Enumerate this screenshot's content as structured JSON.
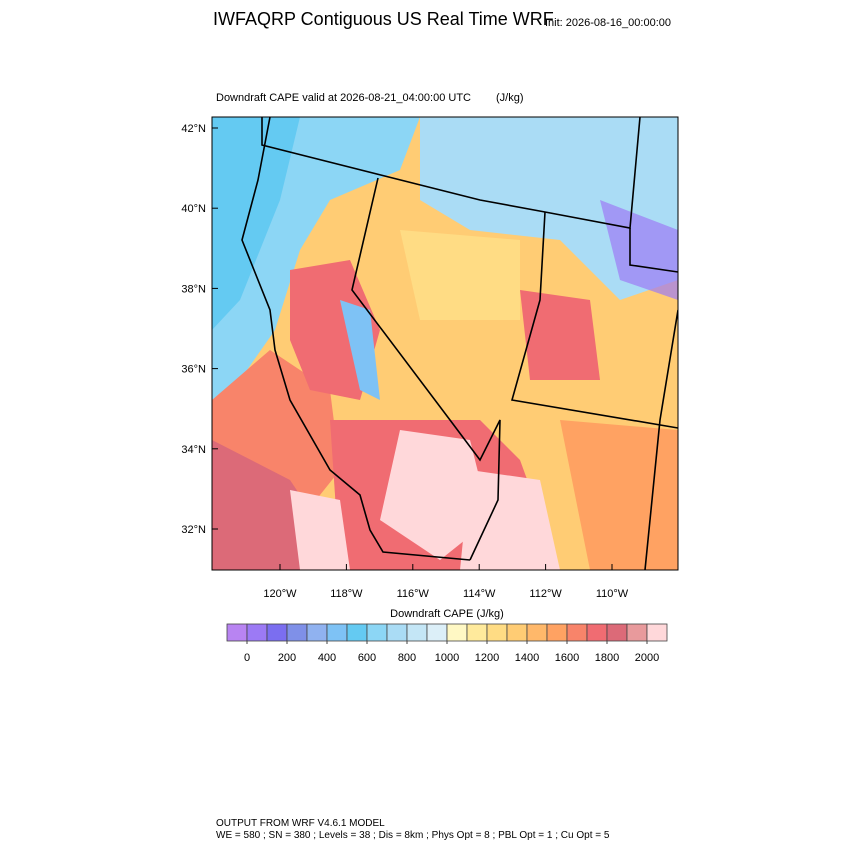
{
  "header": {
    "title": "IWFAQRP Contiguous US Real Time WRF",
    "init": "Init: 2026-08-16_00:00:00"
  },
  "map": {
    "subtitle": "Downdraft CAPE valid at 2026-08-21_04:00:00 UTC",
    "units": "(J/kg)",
    "lat_labels": [
      "42°N",
      "40°N",
      "38°N",
      "36°N",
      "34°N",
      "32°N"
    ],
    "lon_labels": [
      "120°W",
      "118°W",
      "116°W",
      "114°W",
      "112°W",
      "110°W"
    ]
  },
  "colorbar": {
    "title": "Downdraft CAPE  (J/kg)",
    "colors": [
      "#b884f2",
      "#9c7af5",
      "#7b6ef0",
      "#7f90e8",
      "#90b2f0",
      "#7ec2f5",
      "#64caf2",
      "#8cd6f5",
      "#aadcf5",
      "#c4e6f6",
      "#dceff8",
      "#fff8c4",
      "#ffea9c",
      "#ffdc84",
      "#ffcc74",
      "#ffb86a",
      "#ffa262",
      "#f8846a",
      "#f06c72",
      "#dc6a78",
      "#e89a9c",
      "#ffd8da"
    ],
    "ticks": [
      0,
      200,
      400,
      600,
      800,
      1000,
      1200,
      1400,
      1600,
      1800,
      2000
    ]
  },
  "footer": {
    "line1": "OUTPUT FROM WRF V4.6.1 MODEL",
    "line2": "WE = 580 ; SN = 380 ; Levels = 38 ; Dis = 8km ; Phys Opt = 8 ; PBL Opt = 1 ; Cu Opt = 5"
  }
}
